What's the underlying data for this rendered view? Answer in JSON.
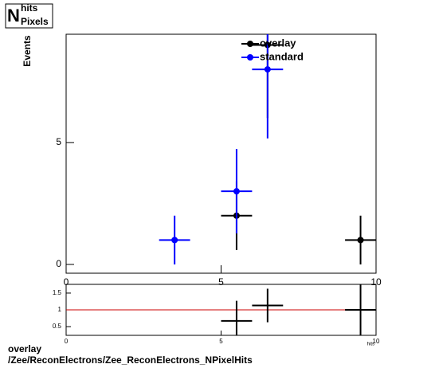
{
  "chart_data": [
    {
      "type": "errorbar",
      "title_main": "N",
      "title_sup": "hits",
      "title_sub": "Pixels",
      "ylabel": "Events",
      "xlim": [
        0,
        10
      ],
      "ylim": [
        -0.36,
        9.44
      ],
      "xticks": [
        0,
        5,
        10
      ],
      "yticks": [
        0,
        5
      ],
      "xerr": 0.5,
      "legend": "top",
      "series": [
        {
          "name": "overlay",
          "color": "#000000",
          "x": [
            5.5,
            6.5,
            9.5
          ],
          "values": [
            2,
            9,
            1
          ],
          "errors": [
            1.41,
            3,
            1
          ]
        },
        {
          "name": "standard",
          "color": "#0000ff",
          "x": [
            3.5,
            5.5,
            6.5
          ],
          "values": [
            1,
            3,
            8
          ],
          "errors": [
            1,
            1.73,
            2.83
          ]
        }
      ]
    },
    {
      "type": "errorbar",
      "xlabel": "hits",
      "xlim": [
        0,
        10
      ],
      "ylim": [
        0.24,
        1.76
      ],
      "xticks": [
        0,
        5,
        10
      ],
      "yticks": [
        0.5,
        1,
        1.5
      ],
      "xerr": 0.5,
      "reference_line": 1,
      "reference_color": "#cc0000",
      "series": [
        {
          "color": "#000000",
          "x": [
            5.5,
            6.5,
            9.5
          ],
          "values": [
            0.67,
            1.13,
            1
          ],
          "errors": [
            0.6,
            0.5,
            1
          ]
        }
      ]
    }
  ],
  "caption": [
    "overlay",
    "/Zee/ReconElectrons/Zee_ReconElectrons_NPixelHits"
  ]
}
